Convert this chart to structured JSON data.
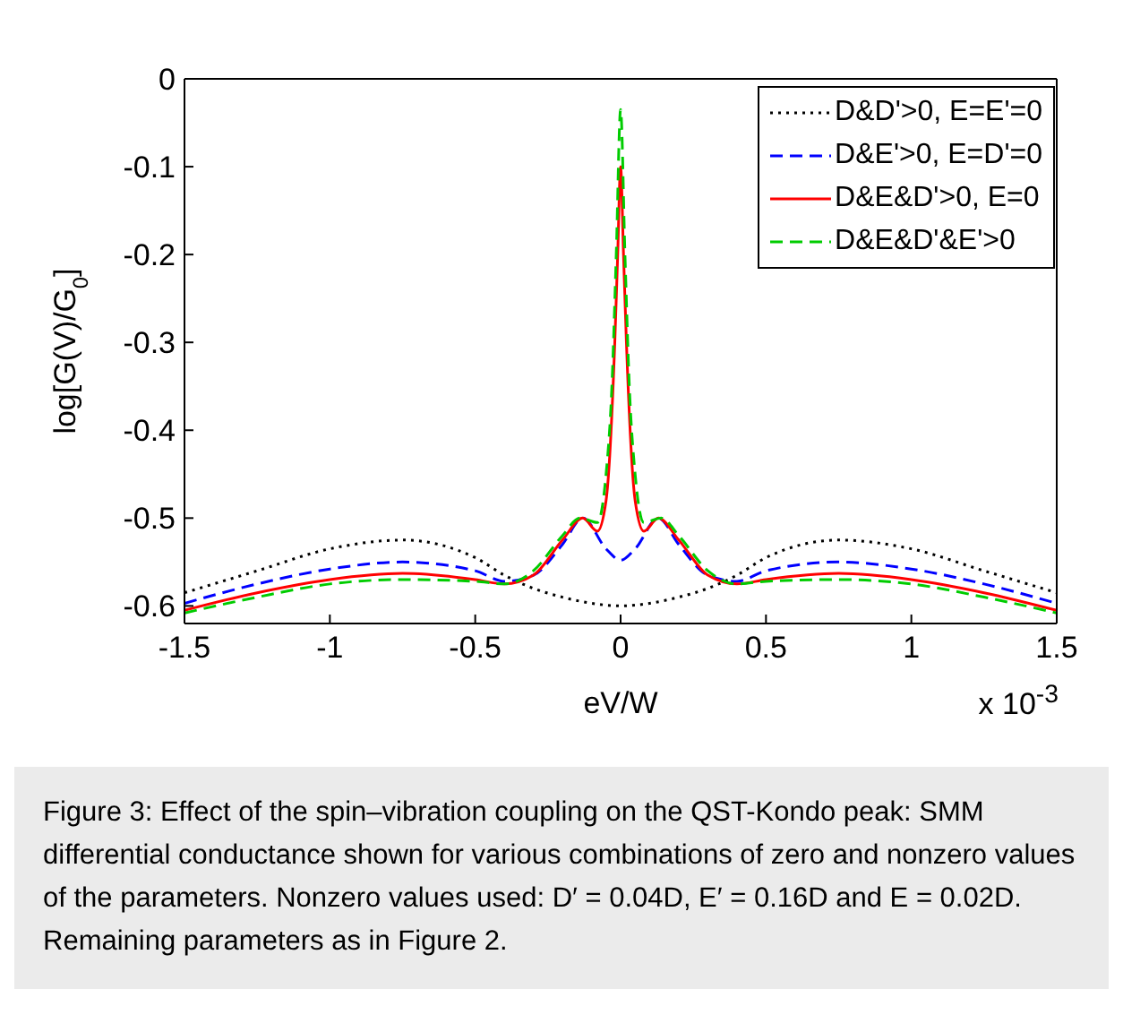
{
  "chart_data": {
    "type": "line",
    "xlabel": "eV/W",
    "ylabel": "log[G(V)/G$_{0}$]",
    "xlim": [
      -1.5,
      1.5
    ],
    "xticks": [
      -1.5,
      -1,
      -0.5,
      0,
      0.5,
      1,
      1.5
    ],
    "ylim": [
      -0.62,
      0
    ],
    "yticks": [
      -0.6,
      -0.5,
      -0.4,
      -0.3,
      -0.2,
      -0.1,
      0
    ],
    "grid": false,
    "legend": "top right",
    "marker": "none",
    "annotations": [
      "x 10$^{-3}$",
      "Figure 3: Effect of the spin–vibration coupling on the QST-Kondo peak: SMM differential conductance shown for various combinations of zero and nonzero values of the parameters. Nonzero values used: D′ = 0.04D, E′ = 0.16D and E = 0.02D. Remaining parameters as in Figure 2."
    ],
    "series": [
      {
        "name": "D&D'>0, E=E'=0",
        "color": "#000000",
        "line_style": "dotted",
        "x": [
          -1.5,
          -1.25,
          -1,
          -0.75,
          -0.5,
          -0.4,
          -0.3,
          -0.2,
          -0.1,
          0,
          0.1,
          0.2,
          0.3,
          0.4,
          0.5,
          0.75,
          1,
          1.25,
          1.5
        ],
        "values": [
          -0.585,
          -0.56,
          -0.535,
          -0.525,
          -0.545,
          -0.565,
          -0.58,
          -0.59,
          -0.597,
          -0.6,
          -0.597,
          -0.59,
          -0.58,
          -0.565,
          -0.545,
          -0.525,
          -0.535,
          -0.56,
          -0.585
        ]
      },
      {
        "name": "D&E'>0, E=D'=0",
        "color": "#0000ff",
        "line_style": "dashed",
        "x": [
          -1.5,
          -1.25,
          -1,
          -0.75,
          -0.5,
          -0.4,
          -0.3,
          -0.2,
          -0.13,
          -0.05,
          0,
          0.05,
          0.13,
          0.2,
          0.3,
          0.4,
          0.5,
          0.75,
          1,
          1.25,
          1.5
        ],
        "values": [
          -0.597,
          -0.575,
          -0.558,
          -0.55,
          -0.56,
          -0.572,
          -0.565,
          -0.53,
          -0.5,
          -0.535,
          -0.548,
          -0.535,
          -0.5,
          -0.53,
          -0.565,
          -0.572,
          -0.56,
          -0.55,
          -0.558,
          -0.575,
          -0.597
        ]
      },
      {
        "name": "D&E&D'>0, E=0",
        "color": "#ff0000",
        "line_style": "solid",
        "x": [
          -1.5,
          -1.25,
          -1,
          -0.75,
          -0.5,
          -0.4,
          -0.3,
          -0.2,
          -0.13,
          -0.08,
          -0.05,
          -0.02,
          -0.01,
          0,
          0.01,
          0.02,
          0.05,
          0.08,
          0.13,
          0.2,
          0.3,
          0.4,
          0.5,
          0.75,
          1,
          1.25,
          1.5
        ],
        "values": [
          -0.605,
          -0.585,
          -0.57,
          -0.563,
          -0.57,
          -0.575,
          -0.565,
          -0.525,
          -0.5,
          -0.515,
          -0.48,
          -0.3,
          -0.2,
          -0.1,
          -0.2,
          -0.3,
          -0.48,
          -0.515,
          -0.5,
          -0.525,
          -0.565,
          -0.575,
          -0.57,
          -0.563,
          -0.57,
          -0.585,
          -0.605
        ]
      },
      {
        "name": "D&E&D'&E'>0",
        "color": "#00cc00",
        "line_style": "dashed",
        "x": [
          -1.5,
          -1.25,
          -1,
          -0.75,
          -0.5,
          -0.4,
          -0.3,
          -0.2,
          -0.14,
          -0.08,
          -0.05,
          -0.03,
          -0.015,
          0,
          0.015,
          0.03,
          0.05,
          0.08,
          0.14,
          0.2,
          0.3,
          0.4,
          0.5,
          0.75,
          1,
          1.25,
          1.5
        ],
        "values": [
          -0.608,
          -0.59,
          -0.575,
          -0.57,
          -0.572,
          -0.575,
          -0.56,
          -0.52,
          -0.5,
          -0.505,
          -0.45,
          -0.35,
          -0.2,
          -0.035,
          -0.2,
          -0.35,
          -0.45,
          -0.505,
          -0.5,
          -0.52,
          -0.56,
          -0.575,
          -0.572,
          -0.57,
          -0.575,
          -0.59,
          -0.608
        ]
      }
    ]
  }
}
